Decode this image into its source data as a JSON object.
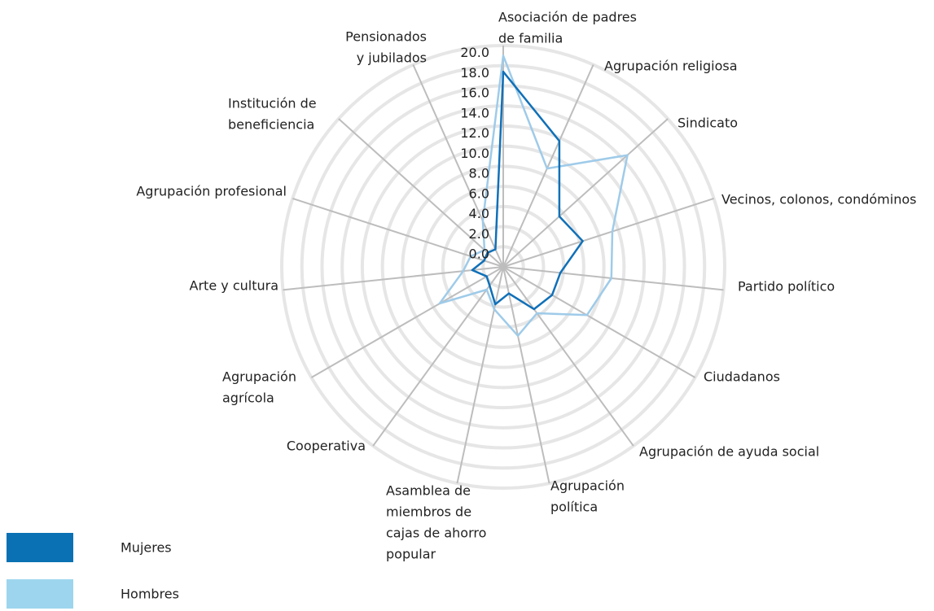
{
  "chart_data": {
    "type": "radar",
    "categories": [
      [
        "Asociación de padres",
        "de familia"
      ],
      [
        "Agrupación religiosa"
      ],
      [
        "Sindicato"
      ],
      [
        "Vecinos, colonos, condóminos"
      ],
      [
        "Partido político"
      ],
      [
        "Ciudadanos"
      ],
      [
        "Agrupación de ayuda social"
      ],
      [
        "Agrupación",
        "política"
      ],
      [
        "Asamblea de",
        "miembros de",
        "cajas de ahorro",
        "popular"
      ],
      [
        "Cooperativa"
      ],
      [
        "Agrupación",
        "agrícola"
      ],
      [
        "Arte y cultura"
      ],
      [
        "Agrupación profesional"
      ],
      [
        "Institución de",
        "beneficiencia"
      ],
      [
        "Pensionados",
        "y jubilados"
      ]
    ],
    "series": [
      {
        "name": "Mujeres",
        "color": "#1070b8",
        "legend_color": "#0a71b4",
        "values": [
          19.4,
          13.7,
          7.5,
          8.3,
          5.7,
          5.6,
          5.2,
          2.7,
          3.8,
          2.3,
          1.9,
          3.1,
          2.0,
          2.1,
          1.9
        ]
      },
      {
        "name": "Hombres",
        "color": "#9fcbe9",
        "legend_color": "#9dd5ee",
        "values": [
          21.0,
          10.7,
          16.6,
          11.4,
          10.8,
          9.6,
          5.7,
          7.0,
          4.3,
          2.8,
          7.3,
          4.0,
          3.4,
          2.5,
          5.0
        ]
      }
    ],
    "ylim": [
      0,
      22
    ],
    "yticks": [
      {
        "value": 0,
        "label": "0.0"
      },
      {
        "value": 2,
        "label": "2.0"
      },
      {
        "value": 4,
        "label": "4.0"
      },
      {
        "value": 6,
        "label": "6.0"
      },
      {
        "value": 8,
        "label": "8.0"
      },
      {
        "value": 10,
        "label": "10.0"
      },
      {
        "value": 12,
        "label": "12.0"
      },
      {
        "value": 14,
        "label": "14.0"
      },
      {
        "value": 16,
        "label": "16.0"
      },
      {
        "value": 18,
        "label": "18.0"
      },
      {
        "value": 20,
        "label": "20.0"
      }
    ],
    "grid": true,
    "legend": "bottom-left"
  }
}
